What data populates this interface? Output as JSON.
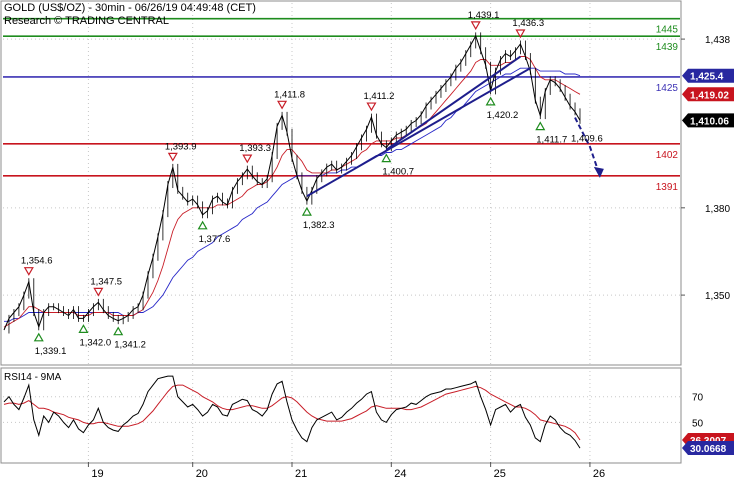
{
  "header": {
    "title": "GOLD (US$/OZ) - 30min - 06/26/19 04:49:48 (CET)",
    "subtitle": "Research © TRADING CENTRAL"
  },
  "chart_data": [
    {
      "type": "line",
      "panel": "price",
      "x_labels": [
        "19",
        "20",
        "21",
        "24",
        "25",
        "26"
      ],
      "y_ticks": [
        1350,
        1380,
        1438
      ],
      "y_range": [
        1327,
        1448
      ],
      "last_value_tags": [
        {
          "label": "1,425.4",
          "value": 1425.4,
          "color": "#2828a0"
        },
        {
          "label": "1,419.02",
          "value": 1419.02,
          "color": "#c8141e"
        },
        {
          "label": "1,410.06",
          "value": 1410.06,
          "color": "#000000"
        }
      ],
      "levels": [
        {
          "label": "1445",
          "value": 1445,
          "color": "#1e8c1e"
        },
        {
          "label": "1439",
          "value": 1439,
          "color": "#1e8c1e"
        },
        {
          "label": "1425",
          "value": 1425,
          "color": "#3c32b4"
        },
        {
          "label": "1402",
          "value": 1402,
          "color": "#c8141e"
        },
        {
          "label": "1391",
          "value": 1391,
          "color": "#c8141e"
        }
      ],
      "price": [
        1338,
        1342,
        1344,
        1346,
        1350,
        1354.6,
        1344,
        1339.1,
        1344,
        1346,
        1346,
        1345,
        1344,
        1343,
        1345,
        1342,
        1342.0,
        1344,
        1346,
        1347.5,
        1345,
        1343,
        1342,
        1341.2,
        1342,
        1343,
        1345,
        1346,
        1350,
        1357,
        1363,
        1370,
        1378,
        1388,
        1393.9,
        1386,
        1384,
        1382,
        1383,
        1381,
        1377.6,
        1379,
        1383,
        1384,
        1382,
        1381,
        1386,
        1389,
        1391,
        1393.3,
        1391,
        1389,
        1388,
        1390,
        1398,
        1408,
        1411.8,
        1406,
        1397,
        1391,
        1386,
        1382.3,
        1386,
        1390,
        1392,
        1394,
        1395,
        1393,
        1394,
        1396,
        1398,
        1401,
        1404,
        1407,
        1411.2,
        1405,
        1402,
        1400.7,
        1403,
        1405,
        1406,
        1407,
        1409,
        1410,
        1412,
        1415,
        1417,
        1419,
        1421,
        1423,
        1425,
        1428,
        1430,
        1433,
        1436,
        1439.1,
        1434,
        1429,
        1420.2,
        1427,
        1431,
        1433,
        1432,
        1434,
        1436.3,
        1432,
        1427,
        1417,
        1411.7,
        1420,
        1424,
        1423,
        1421,
        1418,
        1415,
        1413,
        1410.06
      ],
      "ma_fast": [
        1339,
        1340,
        1341,
        1342,
        1344,
        1346,
        1346,
        1345,
        1344,
        1344,
        1344,
        1344,
        1344,
        1344,
        1344,
        1343,
        1343,
        1343,
        1344,
        1344,
        1344,
        1344,
        1343,
        1343,
        1343,
        1343,
        1343,
        1344,
        1345,
        1348,
        1351,
        1355,
        1360,
        1366,
        1372,
        1376,
        1378,
        1379,
        1380,
        1380,
        1380,
        1380,
        1380,
        1381,
        1381,
        1381,
        1382,
        1383,
        1384,
        1386,
        1387,
        1388,
        1388,
        1389,
        1391,
        1394,
        1398,
        1400,
        1400,
        1398,
        1396,
        1393,
        1392,
        1392,
        1392,
        1392,
        1393,
        1393,
        1394,
        1395,
        1396,
        1397,
        1399,
        1400,
        1402,
        1403,
        1403,
        1403,
        1403,
        1404,
        1404,
        1405,
        1406,
        1407,
        1408,
        1409,
        1411,
        1413,
        1415,
        1417,
        1419,
        1421,
        1423,
        1425,
        1427,
        1430,
        1431,
        1431,
        1429,
        1429,
        1429,
        1430,
        1430,
        1431,
        1432,
        1432,
        1431,
        1428,
        1425,
        1424,
        1424,
        1424,
        1423,
        1422,
        1421,
        1420,
        1419.02
      ],
      "ma_slow": [
        1341,
        1341,
        1342,
        1342,
        1343,
        1344,
        1344,
        1344,
        1344,
        1344,
        1344,
        1344,
        1344,
        1344,
        1344,
        1344,
        1344,
        1344,
        1344,
        1344,
        1344,
        1344,
        1344,
        1344,
        1343,
        1343,
        1343,
        1344,
        1344,
        1345,
        1346,
        1348,
        1350,
        1353,
        1356,
        1358,
        1360,
        1362,
        1363,
        1365,
        1366,
        1367,
        1368,
        1370,
        1371,
        1372,
        1373,
        1374,
        1376,
        1377,
        1378,
        1380,
        1381,
        1382,
        1384,
        1386,
        1388,
        1389,
        1390,
        1391,
        1391,
        1391,
        1391,
        1391,
        1391,
        1392,
        1392,
        1392,
        1393,
        1393,
        1394,
        1394,
        1395,
        1396,
        1397,
        1398,
        1398,
        1399,
        1399,
        1400,
        1400,
        1401,
        1402,
        1403,
        1404,
        1405,
        1406,
        1407,
        1408,
        1410,
        1411,
        1413,
        1414,
        1416,
        1418,
        1420,
        1421,
        1422,
        1423,
        1424,
        1425,
        1426,
        1426,
        1427,
        1428,
        1428,
        1428,
        1428,
        1427,
        1427,
        1427,
        1427,
        1427,
        1426,
        1426,
        1426,
        1425.4
      ],
      "peak_labels": [
        {
          "index": 5,
          "label": "1,354.6"
        },
        {
          "index": 19,
          "label": "1,347.5"
        },
        {
          "index": 34,
          "label": "1,393.9"
        },
        {
          "index": 49,
          "label": "1,393.3"
        },
        {
          "index": 56,
          "label": "1,411.8"
        },
        {
          "index": 74,
          "label": "1,411.2"
        },
        {
          "index": 95,
          "label": "1,439.1"
        },
        {
          "index": 104,
          "label": "1,436.3"
        }
      ],
      "trough_labels": [
        {
          "index": 7,
          "label": "1,339.1"
        },
        {
          "index": 16,
          "label": "1,342.0"
        },
        {
          "index": 23,
          "label": "1,341.2"
        },
        {
          "index": 40,
          "label": "1,377.6"
        },
        {
          "index": 61,
          "label": "1,382.3"
        },
        {
          "index": 77,
          "label": "1,400.7"
        },
        {
          "index": 98,
          "label": "1,420.2"
        },
        {
          "index": 108,
          "label": "1,411.7"
        }
      ],
      "projection_label": "1,409.6",
      "trend_lines": [
        {
          "from": [
            61,
            1384
          ],
          "to": [
            106,
            1428
          ]
        },
        {
          "from": [
            77,
            1400
          ],
          "to": [
            104,
            1432
          ]
        }
      ],
      "projection_path": [
        [
          115,
          1411
        ],
        [
          118,
          1401
        ],
        [
          120,
          1391
        ]
      ]
    },
    {
      "type": "line",
      "panel": "rsi",
      "title": "RSI14 - 9MA",
      "y_ticks": [
        50,
        70
      ],
      "y_range": [
        20,
        90
      ],
      "last_value_tags": [
        {
          "label": "36.3007",
          "value": 36.3007,
          "color": "#c8141e"
        },
        {
          "label": "30.0668",
          "value": 30.0668,
          "color": "#2828a0"
        }
      ],
      "rsi": [
        66,
        70,
        64,
        60,
        69,
        79,
        52,
        40,
        55,
        50,
        58,
        55,
        50,
        46,
        52,
        45,
        42,
        48,
        52,
        61,
        50,
        46,
        44,
        43,
        48,
        51,
        55,
        57,
        64,
        74,
        79,
        84,
        85,
        86,
        86,
        70,
        66,
        62,
        64,
        60,
        55,
        58,
        64,
        62,
        56,
        55,
        64,
        66,
        68,
        67,
        60,
        58,
        55,
        60,
        72,
        80,
        82,
        66,
        52,
        44,
        38,
        35,
        46,
        52,
        54,
        56,
        58,
        52,
        54,
        58,
        61,
        65,
        68,
        72,
        74,
        58,
        52,
        50,
        56,
        60,
        61,
        62,
        65,
        64,
        67,
        70,
        72,
        73,
        74,
        76,
        76,
        77,
        78,
        79,
        80,
        82,
        70,
        60,
        48,
        60,
        62,
        64,
        58,
        62,
        64,
        54,
        48,
        38,
        35,
        48,
        55,
        52,
        46,
        42,
        40,
        36,
        30.0668
      ],
      "rsi_ma": [
        64,
        65,
        65,
        64,
        65,
        67,
        64,
        61,
        61,
        60,
        58,
        57,
        56,
        54,
        53,
        52,
        50,
        49,
        49,
        50,
        50,
        49,
        48,
        47,
        47,
        47,
        48,
        49,
        51,
        55,
        59,
        64,
        69,
        74,
        78,
        79,
        79,
        77,
        75,
        73,
        70,
        68,
        66,
        63,
        61,
        60,
        60,
        61,
        62,
        63,
        63,
        62,
        61,
        61,
        63,
        66,
        69,
        70,
        69,
        66,
        62,
        58,
        55,
        53,
        52,
        51,
        51,
        51,
        51,
        52,
        53,
        55,
        57,
        59,
        62,
        63,
        62,
        61,
        61,
        61,
        61,
        60,
        60,
        61,
        62,
        64,
        66,
        68,
        70,
        72,
        73,
        74,
        75,
        76,
        77,
        78,
        77,
        75,
        72,
        70,
        68,
        66,
        64,
        62,
        62,
        61,
        59,
        56,
        52,
        51,
        50,
        49,
        48,
        47,
        45,
        42,
        36.3007
      ]
    }
  ]
}
